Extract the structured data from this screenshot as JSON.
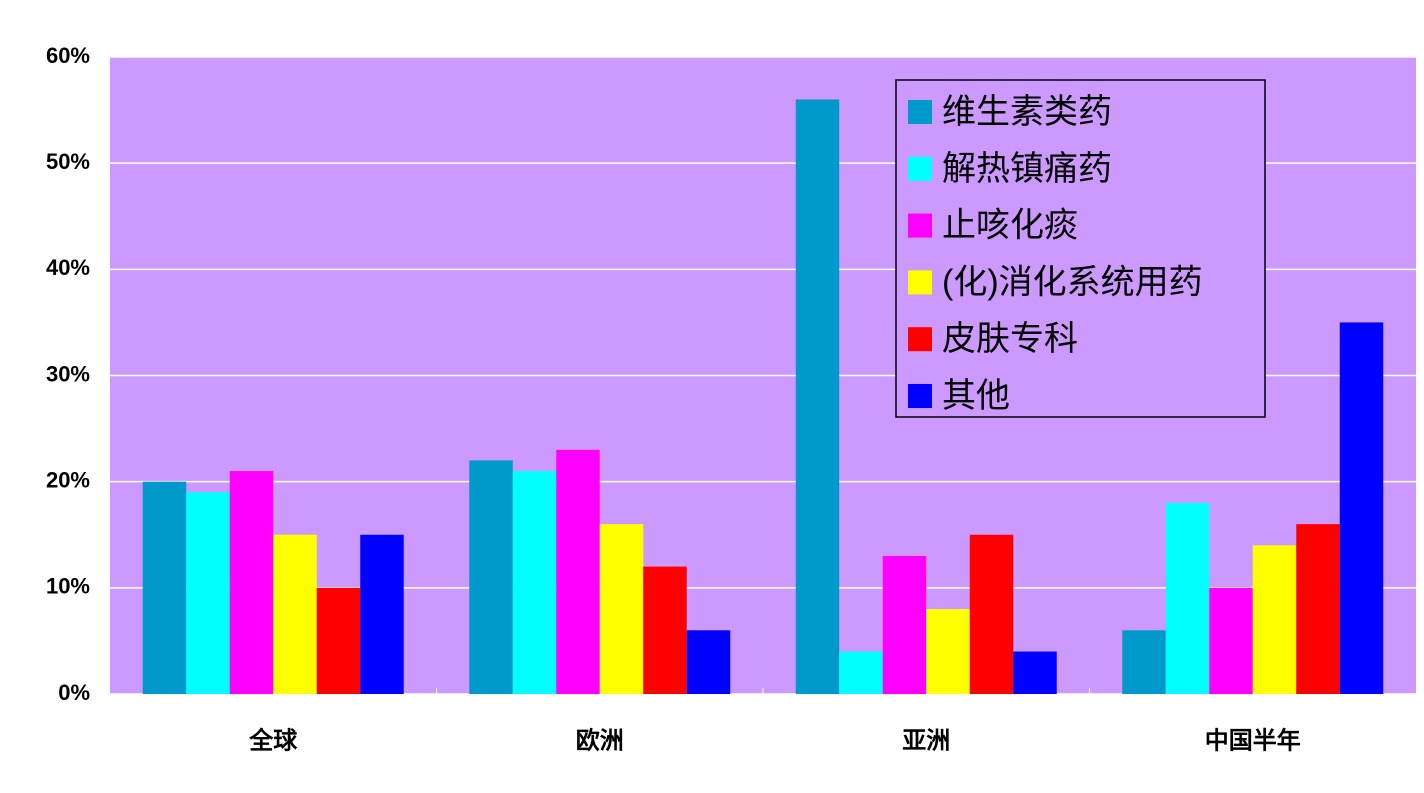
{
  "chart_data": {
    "type": "bar",
    "categories": [
      "全球",
      "欧洲",
      "亚洲",
      "中国半年"
    ],
    "series": [
      {
        "name": "维生素类药",
        "color": "#0099CC",
        "values": [
          20,
          22,
          56,
          6
        ]
      },
      {
        "name": "解热镇痛药",
        "color": "#00FFFF",
        "values": [
          19,
          21,
          4,
          18
        ]
      },
      {
        "name": "止咳化痰",
        "color": "#FF00FF",
        "values": [
          21,
          23,
          13,
          10
        ]
      },
      {
        "name": "(化)消化系统用药",
        "color": "#FFFF00",
        "values": [
          15,
          16,
          8,
          14
        ]
      },
      {
        "name": "皮肤专科",
        "color": "#FF0000",
        "values": [
          10,
          12,
          15,
          16
        ]
      },
      {
        "name": "其他",
        "color": "#0000FF",
        "values": [
          15,
          6,
          4,
          35
        ]
      }
    ],
    "ylim": [
      0,
      60
    ],
    "yticks": [
      {
        "value": 0,
        "label": "0%"
      },
      {
        "value": 10,
        "label": "10%"
      },
      {
        "value": 20,
        "label": "20%"
      },
      {
        "value": 30,
        "label": "30%"
      },
      {
        "value": 40,
        "label": "40%"
      },
      {
        "value": 50,
        "label": "50%"
      },
      {
        "value": 60,
        "label": "60%"
      }
    ],
    "grid": true,
    "plot_background": "#CC99FF",
    "legend": "upper-right"
  }
}
